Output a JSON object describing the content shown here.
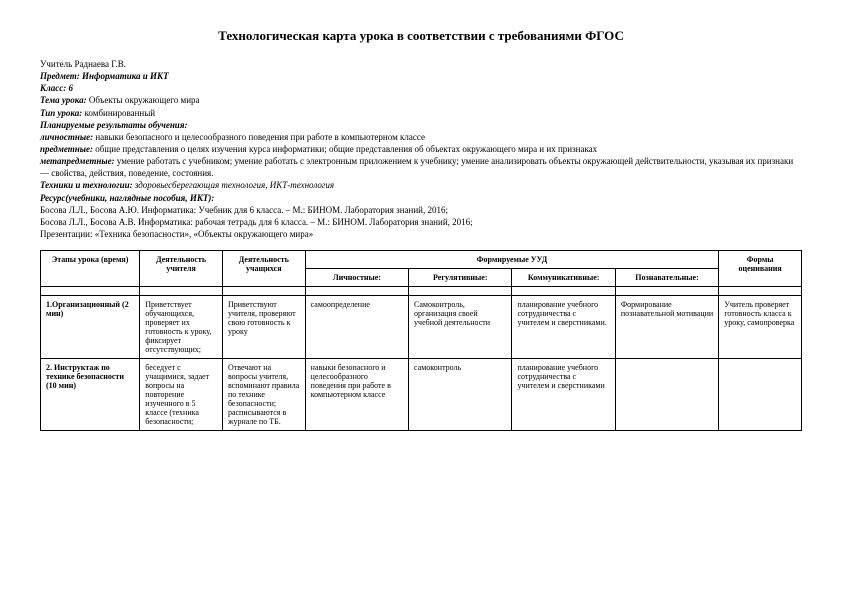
{
  "title": "Технологическая карта урока в соответствии с требованиями ФГОС",
  "meta": {
    "teacher_lbl": "Учитель",
    "teacher": " Раднаева Г.В.",
    "subject_lbl": "Предмет:",
    "subject": " Информатика и ИКТ",
    "class_lbl": "Класс:",
    "class": " 6",
    "topic_lbl": "Тема урока:",
    "topic": "  Объекты окружающего мира",
    "type_lbl": "Тип урока:",
    "type": " комбинированный",
    "plan_lbl": "Планируемые результаты обучения:",
    "pers_lbl": "личностные:",
    "pers": " навыки безопасного и целесообразного поведения при работе в компьютерном классе",
    "subj_lbl": "предметные:",
    "subj": " общие представления о целях изучения курса информатики; общие представления об объектах окружающего мира и их признаках",
    "meta_lbl": "метапредметные:",
    "meta_v": " умение работать с учебником; умение работать с электронным приложением к учебнику; умение анализировать объекты окружающей действительности, указывая их признаки — свойства, действия, поведение, состояния.",
    "tech_lbl": "Техники и технологии:",
    "tech": " здоровьесберегающая технология, ИКТ-технология",
    "res_lbl": "Ресурс(учебники, наглядные пособия, ИКТ):",
    "res1": "Босова Л.Л., Босова А.Ю. Информатика: Учебник для 6 класса. – М.: БИНОМ. Лаборатория знаний, 2016;",
    "res2": "Босова Л.Л., Босова А.В. Информатика: рабочая тетрадь для 6 класса. – М.: БИНОМ. Лаборатория знаний, 2016;",
    "res3": "Презентации: «Техника безопасности», «Объекты окружающего мира»"
  },
  "headers": {
    "stage": "Этапы урока (время)",
    "teacher": "Деятельность учителя",
    "student": "Деятельность учащихся",
    "uud": "Формируемые УУД",
    "eval": "Формы оценивания",
    "u1": "Личностные:",
    "u2": "Регулятивные:",
    "u3": "Коммуникативные:",
    "u4": "Познавательные:"
  },
  "rows": [
    {
      "stage": "1.Организационный (2 мин)",
      "teacher": "Приветствует обучающихся, проверяет их готовность к уроку, фиксирует отсутствующих;",
      "student": "Приветствуют учителя, проверяют свою готовность к уроку",
      "u1": "самоопределение",
      "u2": "Самоконтроль, организация своей учебной деятельности",
      "u3": "планирование учебного сотрудничества с учителем и сверстниками.",
      "u4": "Формирование познавательной мотивации",
      "eval": "Учитель проверяет готовность класса к уроку, самопроверка"
    },
    {
      "stage": "2. Инструктаж по технике безопасности (10 мин)",
      "teacher": "беседует с учащимися, задает вопросы на повторение изученного в 5 классе (техника безопасности;",
      "student": "Отвечают на вопросы учителя, вспоминают правила по технике безопасности; расписываются в журнале по ТБ.",
      "u1": "навыки безопасного и целесообразного поведения при работе в компьютерном классе",
      "u2": "самоконтроль",
      "u3": "планирование учебного сотрудничества с учителем и сверстниками",
      "u4": "",
      "eval": ""
    }
  ]
}
